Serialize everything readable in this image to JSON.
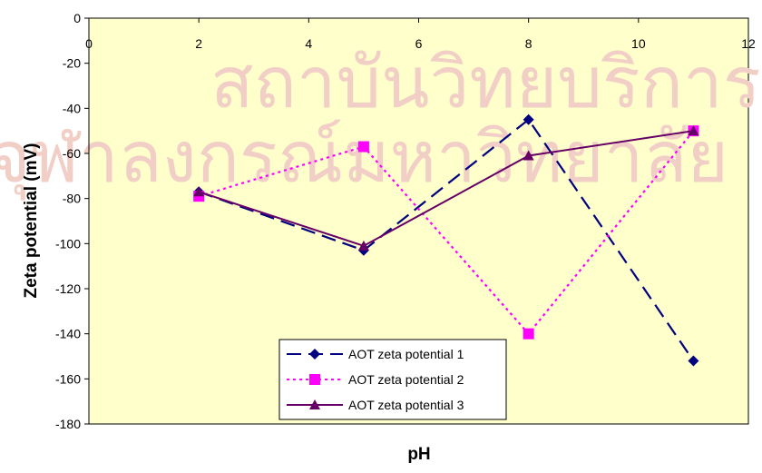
{
  "chart_data": {
    "type": "line",
    "title": "",
    "xlabel": "pH",
    "ylabel": "Zeta potential (mV)",
    "xlim": [
      0,
      12
    ],
    "ylim": [
      -180,
      0
    ],
    "x_ticks": [
      0,
      2,
      4,
      6,
      8,
      10,
      12
    ],
    "y_ticks": [
      0,
      -20,
      -40,
      -60,
      -80,
      -100,
      -120,
      -140,
      -160,
      -180
    ],
    "grid": false,
    "legend_position": "bottom-center",
    "plot_background": "#ffffcc",
    "series": [
      {
        "name": "AOT zeta potential 1",
        "color": "#000080",
        "marker": "diamond",
        "line_style": "long-dash",
        "x": [
          2,
          5,
          8,
          11
        ],
        "y": [
          -77,
          -103,
          -45,
          -152
        ]
      },
      {
        "name": "AOT zeta potential 2",
        "color": "#ff00ff",
        "marker": "square",
        "line_style": "dotted",
        "x": [
          2,
          5,
          8,
          11
        ],
        "y": [
          -79,
          -57,
          -140,
          -50
        ]
      },
      {
        "name": "AOT zeta  potential 3",
        "color": "#660066",
        "marker": "triangle",
        "line_style": "solid",
        "x": [
          2,
          5,
          8,
          11
        ],
        "y": [
          -77,
          -101,
          -61,
          -50
        ]
      }
    ]
  },
  "watermark": {
    "line1": "สถาบันวิทยบริการ",
    "line2": "จุฬาลงกรณ์มหาวิทยาลัย"
  }
}
